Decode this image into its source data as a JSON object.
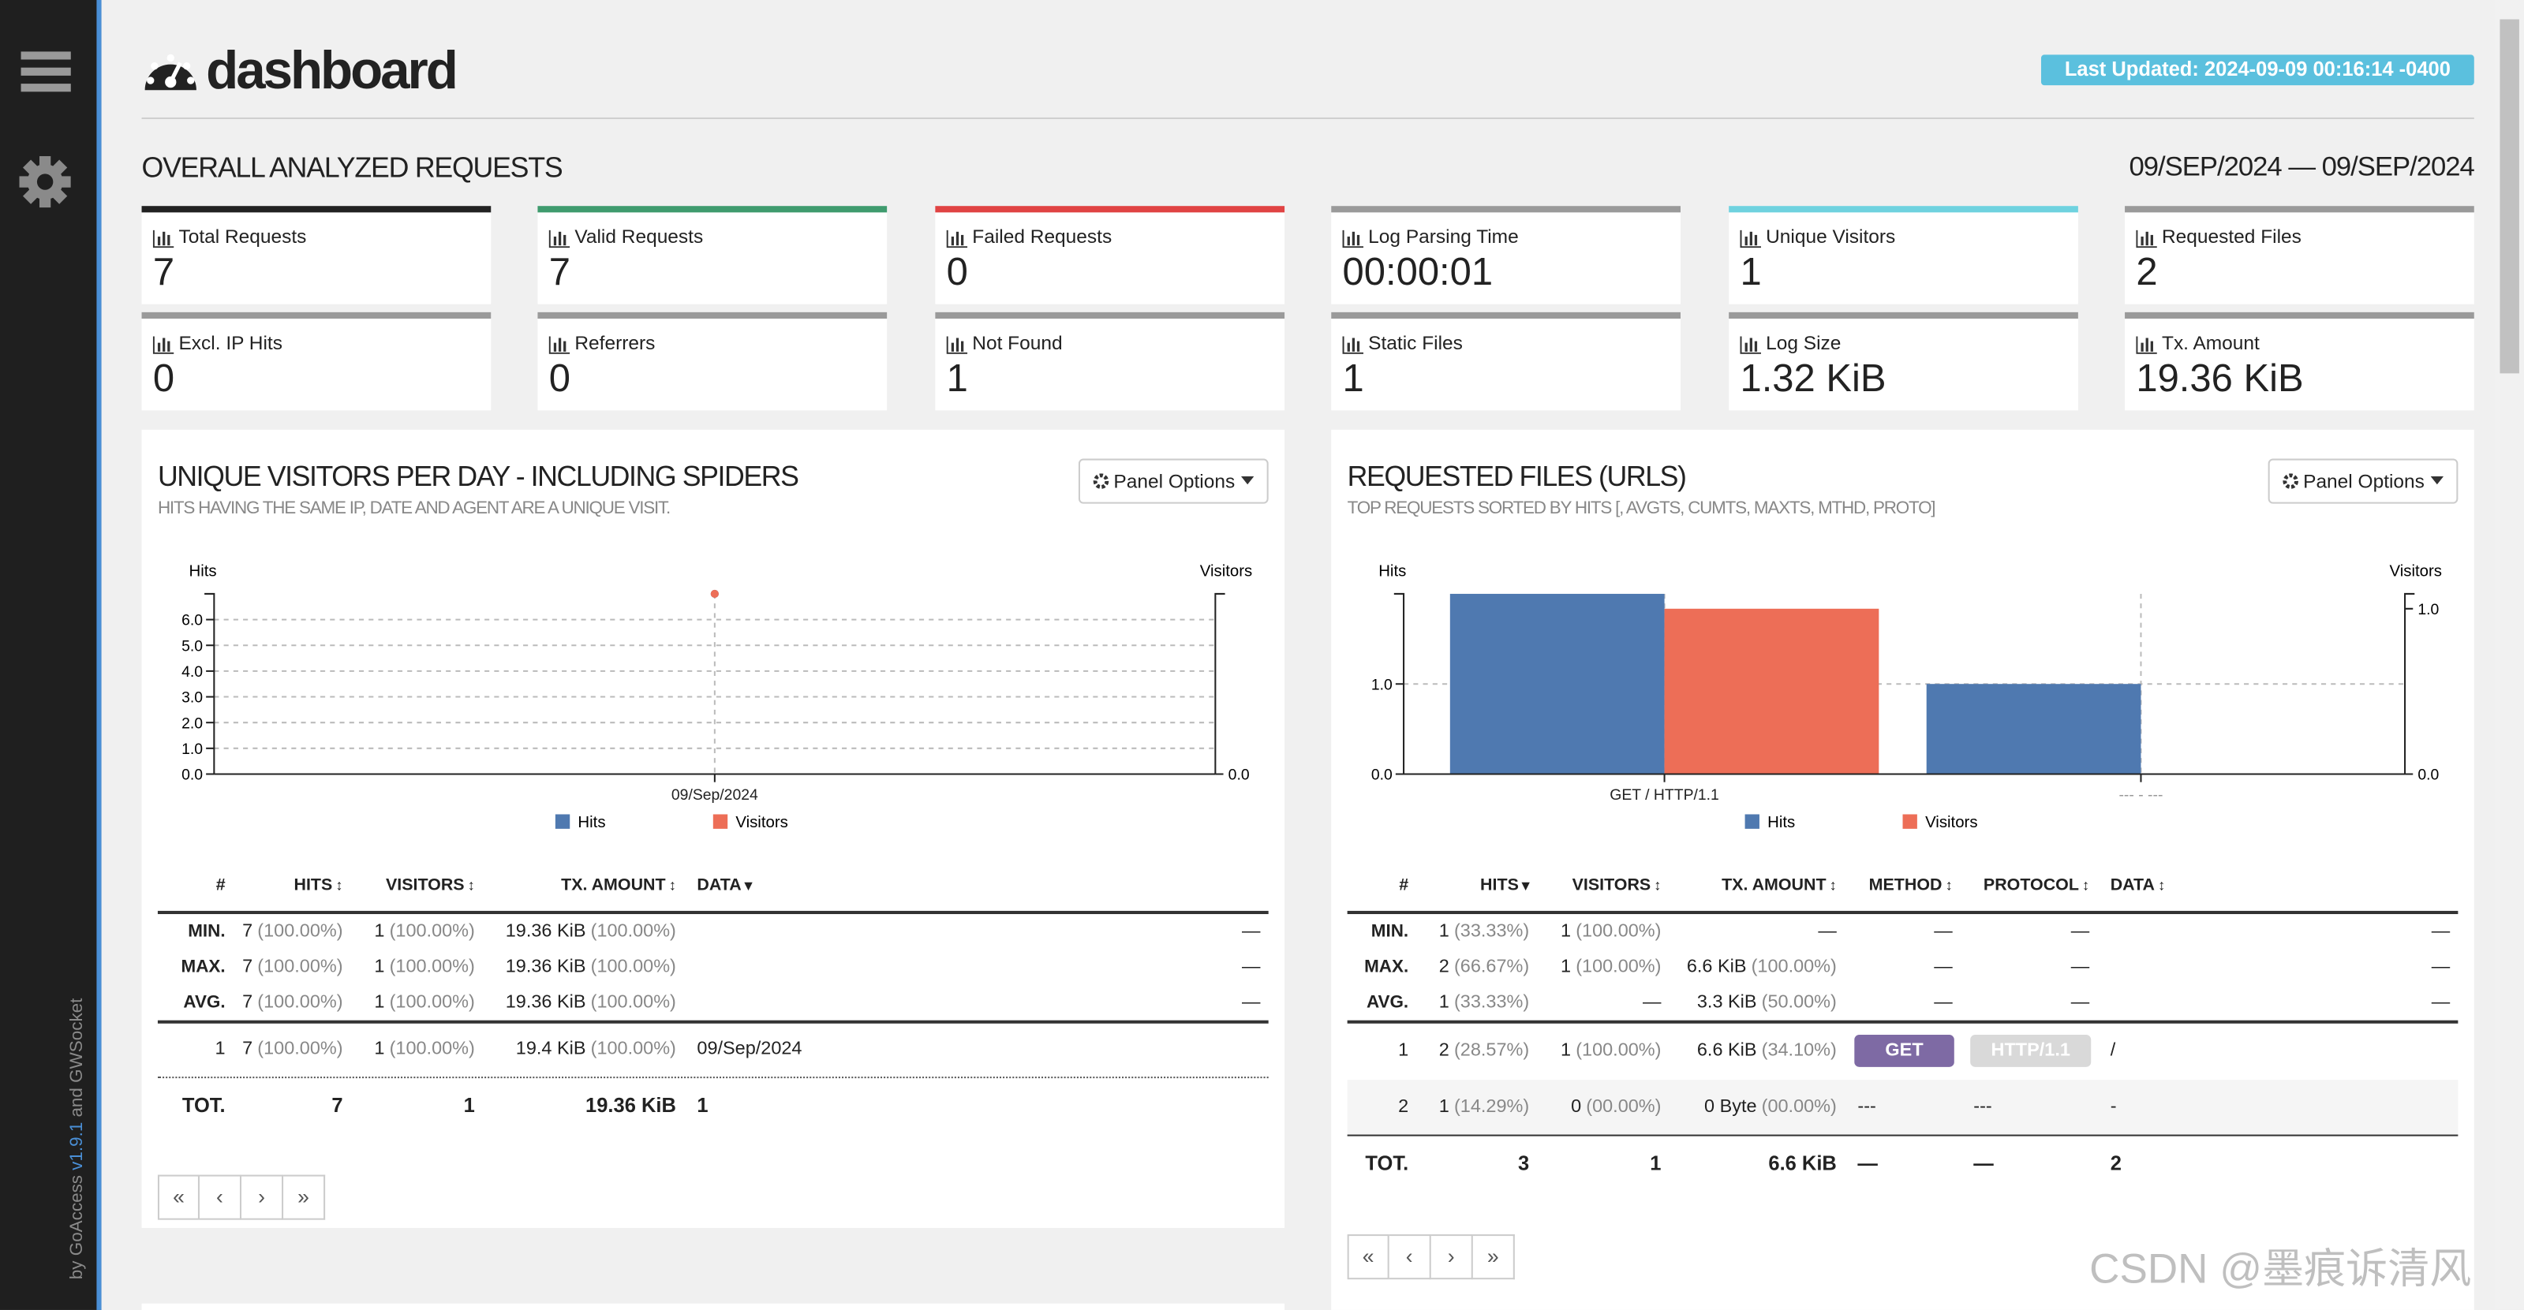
{
  "sidebar": {
    "credit": [
      "by GoAccess",
      "v1.9.1",
      "and GWSocket"
    ]
  },
  "header": {
    "title": "dashboard",
    "last_updated": "Last Updated: 2024-09-09 00:16:14 -0400"
  },
  "overall": {
    "title": "OVERALL ANALYZED REQUESTS",
    "date_range": "09/SEP/2024 — 09/SEP/2024",
    "cards": [
      {
        "label": "Total Requests",
        "value": "7",
        "color": "#222222"
      },
      {
        "label": "Valid Requests",
        "value": "7",
        "color": "#3f9b6e"
      },
      {
        "label": "Failed Requests",
        "value": "0",
        "color": "#e04343"
      },
      {
        "label": "Log Parsing Time",
        "value": "00:00:01",
        "color": "#9a9a9a"
      },
      {
        "label": "Unique Visitors",
        "value": "1",
        "color": "#6fd2df"
      },
      {
        "label": "Requested Files",
        "value": "2",
        "color": "#9a9a9a"
      },
      {
        "label": "Excl. IP Hits",
        "value": "0",
        "color": "#9a9a9a"
      },
      {
        "label": "Referrers",
        "value": "0",
        "color": "#9a9a9a"
      },
      {
        "label": "Not Found",
        "value": "1",
        "color": "#9a9a9a"
      },
      {
        "label": "Static Files",
        "value": "1",
        "color": "#9a9a9a"
      },
      {
        "label": "Log Size",
        "value": "1.32 KiB",
        "color": "#9a9a9a"
      },
      {
        "label": "Tx. Amount",
        "value": "19.36 KiB",
        "color": "#9a9a9a"
      }
    ]
  },
  "panels": [
    {
      "title": "UNIQUE VISITORS PER DAY - INCLUDING SPIDERS",
      "subtitle": "HITS HAVING THE SAME IP, DATE AND AGENT ARE A UNIQUE VISIT.",
      "options": "Panel Options",
      "chart": {
        "type": "line",
        "y_label": "Hits",
        "y2_label": "Visitors",
        "categories": [
          "09/Sep/2024"
        ],
        "series": [
          {
            "name": "Hits",
            "color": "#4f79b0",
            "values": [
              7
            ]
          },
          {
            "name": "Visitors",
            "color": "#ed6e57",
            "values": [
              1
            ],
            "axis": "y2"
          }
        ],
        "ylim": [
          0,
          7
        ],
        "yticks": [
          {
            "value": 0,
            "label": "0.0"
          },
          {
            "value": 1,
            "label": "1.0"
          },
          {
            "value": 2,
            "label": "2.0"
          },
          {
            "value": 3,
            "label": "3.0"
          },
          {
            "value": 4,
            "label": "4.0"
          },
          {
            "value": 5,
            "label": "5.0"
          },
          {
            "value": 6,
            "label": "6.0"
          }
        ],
        "y2lim": [
          0,
          1
        ],
        "y2ticks": [
          {
            "value": 0,
            "label": "0.0"
          }
        ],
        "grid": true
      },
      "table": {
        "headers": [
          "#",
          "HITS",
          "VISITORS",
          "TX. AMOUNT",
          "DATA"
        ],
        "summary": [
          [
            "MIN.",
            [
              "7",
              "(100.00%)"
            ],
            [
              "1",
              "(100.00%)"
            ],
            [
              "19.36 KiB",
              "(100.00%)"
            ],
            "—"
          ],
          [
            "MAX.",
            [
              "7",
              "(100.00%)"
            ],
            [
              "1",
              "(100.00%)"
            ],
            [
              "19.36 KiB",
              "(100.00%)"
            ],
            "—"
          ],
          [
            "AVG.",
            [
              "7",
              "(100.00%)"
            ],
            [
              "1",
              "(100.00%)"
            ],
            [
              "19.36 KiB",
              "(100.00%)"
            ],
            "—"
          ]
        ],
        "rows": [
          [
            "1",
            [
              "7",
              "(100.00%)"
            ],
            [
              "1",
              "(100.00%)"
            ],
            [
              "19.4 KiB",
              "(100.00%)"
            ],
            "09/Sep/2024"
          ]
        ],
        "total": [
          "TOT.",
          "7",
          "1",
          "19.36 KiB",
          "1"
        ]
      },
      "pager": [
        "«",
        "‹",
        "›",
        "»"
      ]
    },
    {
      "title": "REQUESTED FILES (URLS)",
      "subtitle": "TOP REQUESTS SORTED BY HITS [, AVGTS, CUMTS, MAXTS, MTHD, PROTO]",
      "options": "Panel Options",
      "chart": {
        "type": "bar",
        "y_label": "Hits",
        "y2_label": "Visitors",
        "categories": [
          "GET / HTTP/1.1",
          "--- - ---"
        ],
        "series": [
          {
            "name": "Hits",
            "color": "#4f79b0",
            "values": [
              2,
              1
            ]
          },
          {
            "name": "Visitors",
            "color": "#ed6e57",
            "values": [
              1,
              0
            ],
            "axis": "y2"
          }
        ],
        "ylim": [
          0,
          2
        ],
        "yticks": [
          {
            "value": 0,
            "label": "0.0"
          },
          {
            "value": 1,
            "label": "1.0"
          }
        ],
        "y2lim": [
          0,
          1.09
        ],
        "y2ticks": [
          {
            "value": 0,
            "label": "0.0"
          },
          {
            "value": 1,
            "label": "1.0"
          }
        ],
        "grid": true
      },
      "table": {
        "headers": [
          "#",
          "HITS",
          "VISITORS",
          "TX. AMOUNT",
          "METHOD",
          "PROTOCOL",
          "DATA"
        ],
        "summary": [
          [
            "MIN.",
            [
              "1",
              "(33.33%)"
            ],
            [
              "1",
              "(100.00%)"
            ],
            "—",
            "—",
            "—",
            "—"
          ],
          [
            "MAX.",
            [
              "2",
              "(66.67%)"
            ],
            [
              "1",
              "(100.00%)"
            ],
            [
              "6.6 KiB",
              "(100.00%)"
            ],
            "—",
            "—",
            "—"
          ],
          [
            "AVG.",
            [
              "1",
              "(33.33%)"
            ],
            "—",
            [
              "3.3 KiB",
              "(50.00%)"
            ],
            "—",
            "—",
            "—"
          ]
        ],
        "rows": [
          [
            "1",
            [
              "2",
              "(28.57%)"
            ],
            [
              "1",
              "(100.00%)"
            ],
            [
              "6.6 KiB",
              "(34.10%)"
            ],
            "GET",
            "HTTP/1.1",
            "/"
          ],
          [
            "2",
            [
              "1",
              "(14.29%)"
            ],
            [
              "0",
              "(00.00%)"
            ],
            [
              "0 Byte",
              "(00.00%)"
            ],
            "---",
            "---",
            "-"
          ]
        ],
        "total": [
          "TOT.",
          "3",
          "1",
          "6.6 KiB",
          "—",
          "—",
          "2"
        ]
      },
      "pager": [
        "«",
        "‹",
        "›",
        "»"
      ]
    }
  ],
  "watermark": "CSDN @墨痕诉清风"
}
